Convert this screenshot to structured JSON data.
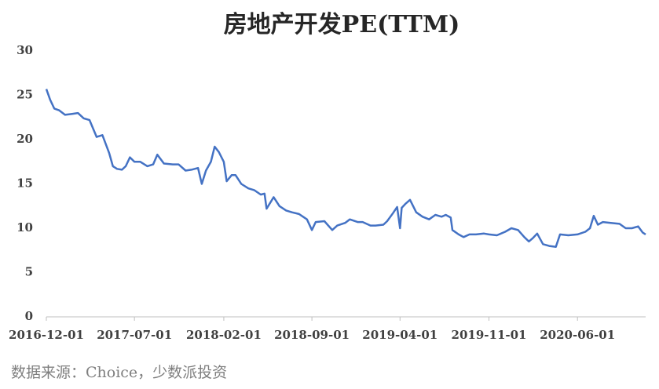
{
  "chart_data": {
    "type": "line",
    "title": "房地产开发PE(TTM)",
    "x": [
      "2016-12-01",
      "2016-12-10",
      "2016-12-20",
      "2017-01-01",
      "2017-01-15",
      "2017-02-01",
      "2017-02-15",
      "2017-03-01",
      "2017-03-15",
      "2017-04-01",
      "2017-04-15",
      "2017-05-01",
      "2017-05-10",
      "2017-05-20",
      "2017-06-01",
      "2017-06-10",
      "2017-06-20",
      "2017-07-01",
      "2017-07-15",
      "2017-08-01",
      "2017-08-15",
      "2017-08-25",
      "2017-09-10",
      "2017-10-01",
      "2017-10-15",
      "2017-11-01",
      "2017-11-15",
      "2017-12-01",
      "2017-12-10",
      "2017-12-20",
      "2018-01-01",
      "2018-01-10",
      "2018-01-20",
      "2018-02-01",
      "2018-02-08",
      "2018-02-20",
      "2018-03-01",
      "2018-03-15",
      "2018-04-01",
      "2018-04-15",
      "2018-05-01",
      "2018-05-10",
      "2018-05-15",
      "2018-06-01",
      "2018-06-15",
      "2018-07-01",
      "2018-07-15",
      "2018-08-01",
      "2018-08-20",
      "2018-09-01",
      "2018-09-10",
      "2018-10-01",
      "2018-10-20",
      "2018-11-01",
      "2018-11-20",
      "2018-12-01",
      "2018-12-20",
      "2019-01-01",
      "2019-01-20",
      "2019-02-01",
      "2019-02-20",
      "2019-03-01",
      "2019-03-15",
      "2019-03-25",
      "2019-04-01",
      "2019-04-05",
      "2019-04-15",
      "2019-04-25",
      "2019-05-10",
      "2019-05-25",
      "2019-06-10",
      "2019-06-25",
      "2019-07-10",
      "2019-07-20",
      "2019-08-01",
      "2019-08-05",
      "2019-08-20",
      "2019-09-01",
      "2019-09-15",
      "2019-10-01",
      "2019-10-20",
      "2019-11-01",
      "2019-11-20",
      "2019-12-10",
      "2019-12-25",
      "2020-01-10",
      "2020-01-25",
      "2020-02-05",
      "2020-02-15",
      "2020-02-25",
      "2020-03-10",
      "2020-03-25",
      "2020-04-10",
      "2020-04-20",
      "2020-05-10",
      "2020-06-01",
      "2020-06-20",
      "2020-07-01",
      "2020-07-10",
      "2020-07-20",
      "2020-08-01",
      "2020-08-20",
      "2020-09-10",
      "2020-09-25",
      "2020-10-10",
      "2020-10-25",
      "2020-11-05",
      "2020-11-12"
    ],
    "series": [
      {
        "name": "房地产开发PE(TTM)",
        "color": "#4472c4",
        "values": [
          25.7,
          24.5,
          23.5,
          23.3,
          22.8,
          22.9,
          23.0,
          22.4,
          22.2,
          20.3,
          20.5,
          18.5,
          17.0,
          16.7,
          16.6,
          17.0,
          18.0,
          17.5,
          17.5,
          17.0,
          17.2,
          18.3,
          17.3,
          17.2,
          17.2,
          16.5,
          16.6,
          16.8,
          15.0,
          16.5,
          17.5,
          19.2,
          18.6,
          17.5,
          15.3,
          16.0,
          16.0,
          15.0,
          14.5,
          14.3,
          13.8,
          13.9,
          12.2,
          13.5,
          12.5,
          12.0,
          11.8,
          11.6,
          11.0,
          9.8,
          10.7,
          10.8,
          9.8,
          10.3,
          10.6,
          11.0,
          10.7,
          10.7,
          10.3,
          10.3,
          10.4,
          10.8,
          11.7,
          12.4,
          10.0,
          12.3,
          12.8,
          13.2,
          11.8,
          11.3,
          11.0,
          11.5,
          11.3,
          11.5,
          11.2,
          9.8,
          9.3,
          9.0,
          9.3,
          9.3,
          9.4,
          9.3,
          9.2,
          9.6,
          10.0,
          9.8,
          9.0,
          8.5,
          8.9,
          9.4,
          8.2,
          8.0,
          7.9,
          9.3,
          9.2,
          9.3,
          9.6,
          10.0,
          11.4,
          10.4,
          10.7,
          10.6,
          10.5,
          10.0,
          10.0,
          10.2,
          9.5,
          9.3
        ]
      }
    ],
    "xlim": [
      "2016-12-01",
      "2020-11-12"
    ],
    "xticks": [
      "2016-12-01",
      "2017-07-01",
      "2018-02-01",
      "2018-09-01",
      "2019-04-01",
      "2019-11-01",
      "2020-06-01"
    ],
    "ylim": [
      0,
      30
    ],
    "yticks": [
      0,
      5,
      10,
      15,
      20,
      25,
      30
    ],
    "grid": false,
    "source": "数据来源：Choice，少数派投资"
  }
}
